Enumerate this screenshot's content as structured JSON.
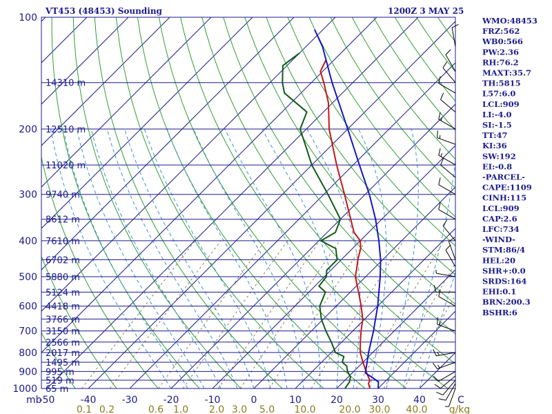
{
  "header": {
    "station": "VT453 (48453) Sounding",
    "time": "1200Z  3 MAY 25"
  },
  "indices": [
    "WMO:48453",
    "FRZ:562",
    "WB0:566",
    "PW:2.36",
    "RH:76.2",
    "MAXT:35.7",
    "TH:5815",
    "L57:6.0",
    "LCL:909",
    "LI:-4.0",
    "SI:-1.5",
    "TT:47",
    "KI:36",
    "SW:192",
    "EI:-0.8",
    "-PARCEL-",
    "CAPE:1109",
    "CINH:115",
    "LCL:909",
    "CAP:2.6",
    "LFC:734",
    "-WIND-",
    "STM:86/4",
    "HEL:20",
    "SHR+:0.0",
    "SRDS:164",
    "EHI:0.1",
    "BRN:200.3",
    "BSHR:6"
  ],
  "colors": {
    "isobar": "#1a1a8c",
    "isotherm": "#1a1a8c",
    "dry_adiabat": "#2e9e2e",
    "moist_adiabat": "#3a8fd0",
    "mixing_ratio": "#8c7a4a",
    "temperature": "#c81414",
    "dewpoint": "#0f5a14",
    "parcel": "#1414c8",
    "wind": "#000000"
  },
  "chart_data": {
    "type": "line",
    "title": "VT453 (48453) Sounding",
    "xlabel": "",
    "ylabel": "mb",
    "xlim": [
      -50,
      50
    ],
    "ylim": [
      1000,
      100
    ],
    "y_scale": "log-pressure",
    "skew": "temperature lines skewed 45 degrees",
    "pressure_ticks": [
      100,
      200,
      300,
      400,
      500,
      600,
      700,
      800,
      900,
      1000
    ],
    "temperature_ticks": [
      -50,
      -40,
      -30,
      -20,
      -10,
      0,
      10,
      20,
      30,
      40
    ],
    "temperature_tick_labels": [
      "-50",
      "-40",
      "-30",
      "-20",
      "-10",
      "0",
      "10",
      "20",
      "30",
      "40",
      "C"
    ],
    "mixing_ratio_labels": [
      "0.1",
      "0.2",
      "0.6",
      "1.0",
      "2.0",
      "3.0",
      "5.0",
      "10.0",
      "20.0",
      "30.0",
      "40.0",
      "g/kg"
    ],
    "height_labels": [
      {
        "p": 150,
        "label": "14310 m"
      },
      {
        "p": 200,
        "label": "12510 m"
      },
      {
        "p": 250,
        "label": "11020 m"
      },
      {
        "p": 300,
        "label": "9740 m"
      },
      {
        "p": 350,
        "label": "8612 m"
      },
      {
        "p": 400,
        "label": "7610 m"
      },
      {
        "p": 450,
        "label": "6702 m"
      },
      {
        "p": 500,
        "label": "5880 m"
      },
      {
        "p": 550,
        "label": "5124 m"
      },
      {
        "p": 600,
        "label": "4418 m"
      },
      {
        "p": 650,
        "label": "3766 m"
      },
      {
        "p": 700,
        "label": "3150 m"
      },
      {
        "p": 750,
        "label": "2566 m"
      },
      {
        "p": 800,
        "label": "2017 m"
      },
      {
        "p": 850,
        "label": "1495 m"
      },
      {
        "p": 900,
        "label": "995 m"
      },
      {
        "p": 950,
        "label": "519 m"
      },
      {
        "p": 1000,
        "label": "65 m"
      }
    ],
    "series": [
      {
        "name": "temperature",
        "points": [
          {
            "p": 1000,
            "t": 28.0
          },
          {
            "p": 970,
            "t": 26.5
          },
          {
            "p": 950,
            "t": 26.0
          },
          {
            "p": 925,
            "t": 24.5
          },
          {
            "p": 900,
            "t": 23.0
          },
          {
            "p": 850,
            "t": 20.0
          },
          {
            "p": 800,
            "t": 17.0
          },
          {
            "p": 750,
            "t": 14.5
          },
          {
            "p": 700,
            "t": 12.0
          },
          {
            "p": 650,
            "t": 9.5
          },
          {
            "p": 600,
            "t": 6.0
          },
          {
            "p": 550,
            "t": 2.0
          },
          {
            "p": 500,
            "t": -2.5
          },
          {
            "p": 470,
            "t": -4.5
          },
          {
            "p": 450,
            "t": -6.0
          },
          {
            "p": 420,
            "t": -8.0
          },
          {
            "p": 400,
            "t": -10.0
          },
          {
            "p": 380,
            "t": -13.5
          },
          {
            "p": 350,
            "t": -17.5
          },
          {
            "p": 300,
            "t": -25.0
          },
          {
            "p": 250,
            "t": -34.0
          },
          {
            "p": 200,
            "t": -44.5
          },
          {
            "p": 170,
            "t": -51.0
          },
          {
            "p": 150,
            "t": -57.0
          },
          {
            "p": 140,
            "t": -60.5
          },
          {
            "p": 130,
            "t": -62.0
          }
        ]
      },
      {
        "name": "dewpoint",
        "points": [
          {
            "p": 1000,
            "t": 22.0
          },
          {
            "p": 960,
            "t": 21.5
          },
          {
            "p": 930,
            "t": 20.5
          },
          {
            "p": 900,
            "t": 18.5
          },
          {
            "p": 870,
            "t": 17.0
          },
          {
            "p": 850,
            "t": 15.0
          },
          {
            "p": 820,
            "t": 14.0
          },
          {
            "p": 800,
            "t": 11.0
          },
          {
            "p": 750,
            "t": 7.5
          },
          {
            "p": 700,
            "t": 3.5
          },
          {
            "p": 650,
            "t": -0.5
          },
          {
            "p": 600,
            "t": -4.0
          },
          {
            "p": 550,
            "t": -6.0
          },
          {
            "p": 530,
            "t": -9.0
          },
          {
            "p": 500,
            "t": -9.5
          },
          {
            "p": 480,
            "t": -11.0
          },
          {
            "p": 450,
            "t": -11.0
          },
          {
            "p": 420,
            "t": -14.0
          },
          {
            "p": 400,
            "t": -19.5
          },
          {
            "p": 380,
            "t": -18.0
          },
          {
            "p": 350,
            "t": -20.0
          },
          {
            "p": 300,
            "t": -29.0
          },
          {
            "p": 250,
            "t": -40.0
          },
          {
            "p": 200,
            "t": -51.5
          },
          {
            "p": 180,
            "t": -54.0
          },
          {
            "p": 160,
            "t": -64.0
          },
          {
            "p": 150,
            "t": -67.0
          },
          {
            "p": 135,
            "t": -71.0
          },
          {
            "p": 125,
            "t": -70.0
          }
        ]
      },
      {
        "name": "parcel",
        "points": [
          {
            "p": 1000,
            "t": 30.0
          },
          {
            "p": 960,
            "t": 28.5
          },
          {
            "p": 930,
            "t": 25.5
          },
          {
            "p": 909,
            "t": 23.2
          },
          {
            "p": 850,
            "t": 21.0
          },
          {
            "p": 800,
            "t": 19.0
          },
          {
            "p": 700,
            "t": 15.0
          },
          {
            "p": 600,
            "t": 10.0
          },
          {
            "p": 500,
            "t": 3.5
          },
          {
            "p": 450,
            "t": -0.5
          },
          {
            "p": 400,
            "t": -5.5
          },
          {
            "p": 350,
            "t": -11.5
          },
          {
            "p": 300,
            "t": -19.0
          },
          {
            "p": 250,
            "t": -28.5
          },
          {
            "p": 200,
            "t": -40.0
          },
          {
            "p": 150,
            "t": -55.0
          },
          {
            "p": 120,
            "t": -66.0
          },
          {
            "p": 108,
            "t": -72.0
          }
        ]
      }
    ],
    "wind_barbs": [
      {
        "p": 1000,
        "dir": 200,
        "spd": 5
      },
      {
        "p": 970,
        "dir": 210,
        "spd": 10
      },
      {
        "p": 950,
        "dir": 220,
        "spd": 10
      },
      {
        "p": 925,
        "dir": 230,
        "spd": 10
      },
      {
        "p": 900,
        "dir": 240,
        "spd": 10
      },
      {
        "p": 850,
        "dir": 250,
        "spd": 15
      },
      {
        "p": 800,
        "dir": 260,
        "spd": 15
      },
      {
        "p": 700,
        "dir": 290,
        "spd": 15
      },
      {
        "p": 600,
        "dir": 300,
        "spd": 10
      },
      {
        "p": 550,
        "dir": 270,
        "spd": 10
      },
      {
        "p": 500,
        "dir": 280,
        "spd": 5
      },
      {
        "p": 470,
        "dir": 330,
        "spd": 10
      },
      {
        "p": 450,
        "dir": 340,
        "spd": 10
      },
      {
        "p": 400,
        "dir": 320,
        "spd": 10
      },
      {
        "p": 350,
        "dir": 300,
        "spd": 10
      },
      {
        "p": 300,
        "dir": 300,
        "spd": 10
      },
      {
        "p": 270,
        "dir": 310,
        "spd": 10
      },
      {
        "p": 250,
        "dir": 300,
        "spd": 15
      },
      {
        "p": 220,
        "dir": 290,
        "spd": 15
      },
      {
        "p": 200,
        "dir": 300,
        "spd": 15
      },
      {
        "p": 180,
        "dir": 310,
        "spd": 10
      },
      {
        "p": 160,
        "dir": 300,
        "spd": 10
      },
      {
        "p": 150,
        "dir": 320,
        "spd": 10
      },
      {
        "p": 140,
        "dir": 330,
        "spd": 10
      },
      {
        "p": 120,
        "dir": 350,
        "spd": 10
      }
    ]
  }
}
